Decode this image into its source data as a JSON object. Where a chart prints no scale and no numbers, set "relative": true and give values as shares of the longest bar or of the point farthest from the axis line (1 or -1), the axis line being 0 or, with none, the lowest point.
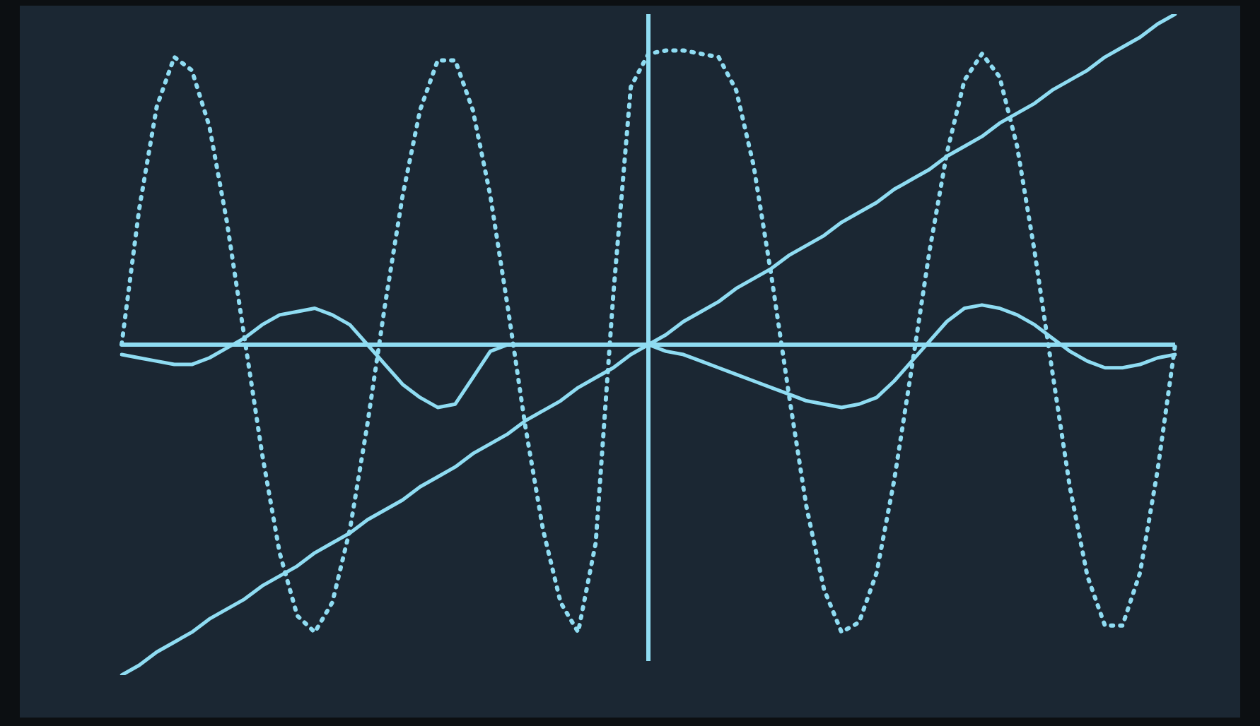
{
  "chart_data": {
    "type": "line",
    "relative": true,
    "legend": false,
    "marker": "none",
    "ref_lines": [
      {
        "axis": "y",
        "value": 0,
        "color": "#8fdcf2"
      }
    ],
    "categories": [
      null,
      null,
      null,
      null,
      null,
      null,
      null,
      null,
      null,
      null,
      null,
      null,
      null,
      null,
      null,
      null,
      null,
      null,
      null,
      null,
      null,
      null,
      null,
      null,
      null,
      null,
      null,
      null,
      null,
      null,
      null,
      null,
      null,
      null,
      null,
      null,
      null,
      null,
      null,
      null,
      null,
      null,
      null,
      null,
      null,
      null,
      null,
      null,
      null,
      null,
      null,
      null,
      null,
      null,
      null,
      null,
      null,
      null,
      null,
      null,
      null
    ],
    "series": [
      {
        "color": "#8fdcf2",
        "line_style": "dotted",
        "values": [
          0,
          0.41,
          0.72,
          0.87,
          0.83,
          0.66,
          0.37,
          0.02,
          -0.33,
          -0.63,
          -0.82,
          -0.87,
          -0.78,
          -0.56,
          -0.24,
          0.12,
          0.45,
          0.71,
          0.86,
          0.86,
          0.71,
          0.45,
          0.11,
          -0.25,
          -0.56,
          -0.78,
          -0.87,
          -0.6,
          0.15,
          0.78,
          0.88,
          0.89,
          0.89,
          0.88,
          0.87,
          0.77,
          0.54,
          0.21,
          -0.15,
          -0.49,
          -0.74,
          -0.87,
          -0.84,
          -0.69,
          -0.41,
          -0.07,
          0.28,
          0.58,
          0.8,
          0.88,
          0.81,
          0.6,
          0.28,
          -0.08,
          -0.43,
          -0.7,
          -0.85,
          -0.85,
          -0.69,
          -0.38,
          0
        ]
      },
      {
        "color": "#8fdcf2",
        "line_style": "solid",
        "values": [
          -0.03,
          -0.04,
          -0.05,
          -0.06,
          -0.06,
          -0.04,
          -0.01,
          0.02,
          0.06,
          0.09,
          0.1,
          0.11,
          0.09,
          0.06,
          0,
          -0.06,
          -0.12,
          -0.16,
          -0.19,
          -0.18,
          -0.1,
          -0.02,
          0,
          0,
          0,
          0,
          0,
          0,
          0,
          0,
          0,
          -0.02,
          -0.03,
          -0.05,
          -0.07,
          -0.09,
          -0.11,
          -0.13,
          -0.15,
          -0.17,
          -0.18,
          -0.19,
          -0.18,
          -0.16,
          -0.11,
          -0.05,
          0.01,
          0.07,
          0.11,
          0.12,
          0.11,
          0.09,
          0.06,
          0.02,
          -0.02,
          -0.05,
          -0.07,
          -0.07,
          -0.06,
          -0.04,
          -0.03
        ]
      },
      {
        "color": "#8fdcf2",
        "line_style": "solid",
        "values": [
          -1,
          -0.97,
          -0.93,
          -0.9,
          -0.87,
          -0.83,
          -0.8,
          -0.77,
          -0.73,
          -0.7,
          -0.67,
          -0.63,
          -0.6,
          -0.57,
          -0.53,
          -0.5,
          -0.47,
          -0.43,
          -0.4,
          -0.37,
          -0.33,
          -0.3,
          -0.27,
          -0.23,
          -0.2,
          -0.17,
          -0.13,
          -0.1,
          -0.07,
          -0.03,
          0,
          0.03,
          0.07,
          0.1,
          0.13,
          0.17,
          0.2,
          0.23,
          0.27,
          0.3,
          0.33,
          0.37,
          0.4,
          0.43,
          0.47,
          0.5,
          0.53,
          0.57,
          0.6,
          0.63,
          0.67,
          0.7,
          0.73,
          0.77,
          0.8,
          0.83,
          0.87,
          0.9,
          0.93,
          0.97,
          1
        ]
      }
    ]
  }
}
